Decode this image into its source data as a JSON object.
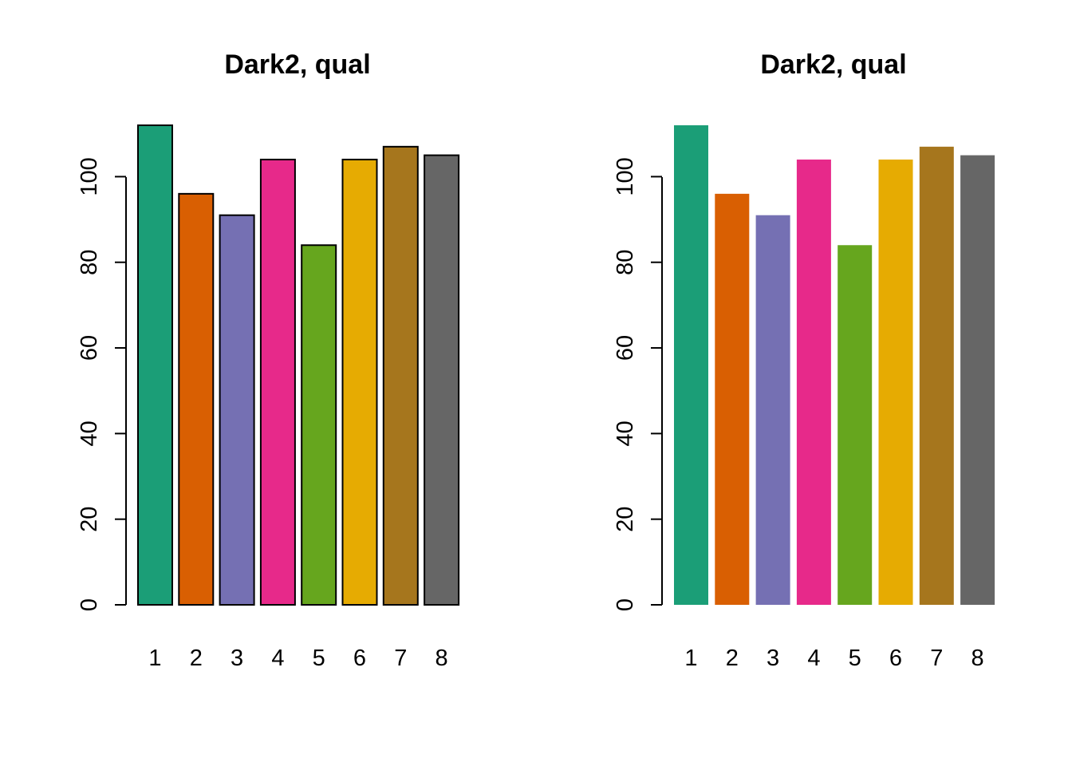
{
  "chart_data": [
    {
      "type": "bar",
      "title": "Dark2, qual",
      "categories": [
        "1",
        "2",
        "3",
        "4",
        "5",
        "6",
        "7",
        "8"
      ],
      "values": [
        112,
        96,
        91,
        104,
        84,
        104,
        107,
        105
      ],
      "colors": [
        "#1B9E77",
        "#D95F02",
        "#7570B3",
        "#E7298A",
        "#66A61E",
        "#E6AB02",
        "#A6761D",
        "#666666"
      ],
      "bar_border": true,
      "ylim": [
        0,
        112
      ],
      "yticks": [
        "0",
        "20",
        "40",
        "60",
        "80",
        "100"
      ],
      "xlabel": "",
      "ylabel": ""
    },
    {
      "type": "bar",
      "title": "Dark2, qual",
      "categories": [
        "1",
        "2",
        "3",
        "4",
        "5",
        "6",
        "7",
        "8"
      ],
      "values": [
        112,
        96,
        91,
        104,
        84,
        104,
        107,
        105
      ],
      "colors": [
        "#1B9E77",
        "#D95F02",
        "#7570B3",
        "#E7298A",
        "#66A61E",
        "#E6AB02",
        "#A6761D",
        "#666666"
      ],
      "bar_border": false,
      "ylim": [
        0,
        112
      ],
      "yticks": [
        "0",
        "20",
        "40",
        "60",
        "80",
        "100"
      ],
      "xlabel": "",
      "ylabel": ""
    }
  ]
}
